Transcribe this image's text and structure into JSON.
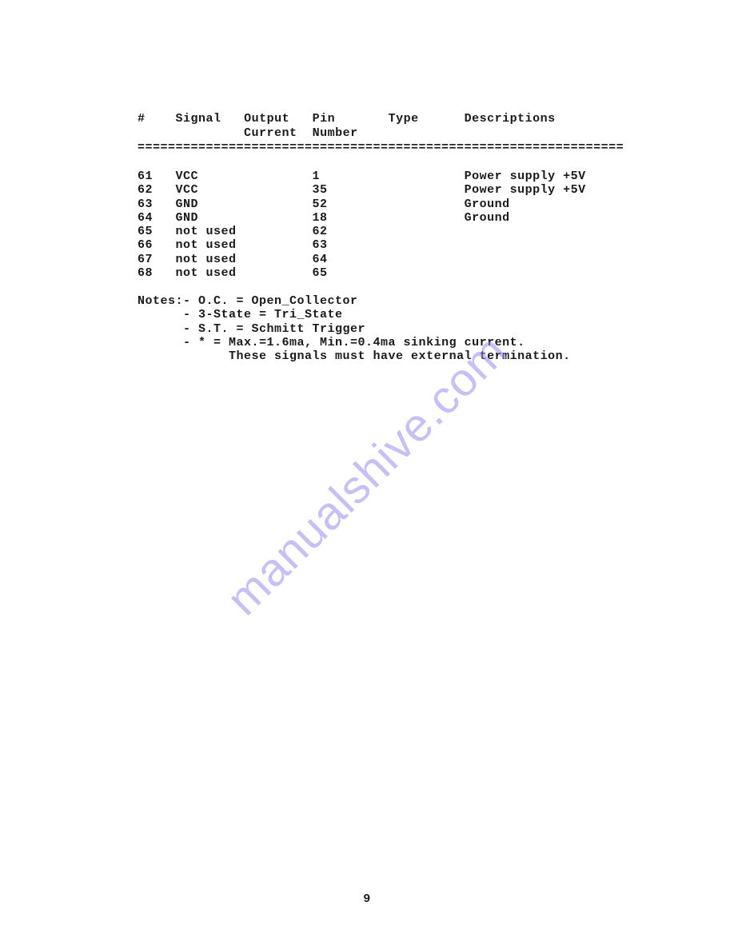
{
  "table": {
    "columns": {
      "num": "#",
      "signal": "Signal",
      "output": "Output",
      "current": "Current",
      "pin": "Pin",
      "number": "Number",
      "type": "Type",
      "descriptions": "Descriptions"
    },
    "separator": "================================================================",
    "rows": [
      {
        "num": "61",
        "signal": "VCC",
        "output": "",
        "pin": "1",
        "type": "",
        "desc": "Power supply +5V"
      },
      {
        "num": "62",
        "signal": "VCC",
        "output": "",
        "pin": "35",
        "type": "",
        "desc": "Power supply +5V"
      },
      {
        "num": "63",
        "signal": "GND",
        "output": "",
        "pin": "52",
        "type": "",
        "desc": "Ground"
      },
      {
        "num": "64",
        "signal": "GND",
        "output": "",
        "pin": "18",
        "type": "",
        "desc": "Ground"
      },
      {
        "num": "65",
        "signal": "not used",
        "output": "",
        "pin": "62",
        "type": "",
        "desc": ""
      },
      {
        "num": "66",
        "signal": "not used",
        "output": "",
        "pin": "63",
        "type": "",
        "desc": ""
      },
      {
        "num": "67",
        "signal": "not used",
        "output": "",
        "pin": "64",
        "type": "",
        "desc": ""
      },
      {
        "num": "68",
        "signal": "not used",
        "output": "",
        "pin": "65",
        "type": "",
        "desc": ""
      }
    ]
  },
  "notes": {
    "prefix": "Notes:",
    "items": [
      "- O.C. = Open_Collector",
      "- 3-State = Tri_State",
      "- S.T. = Schmitt Trigger",
      "- * = Max.=1.6ma, Min.=0.4ma sinking current.",
      "      These signals must have external termination."
    ]
  },
  "watermark": "manualshive.com",
  "page_number": "9",
  "colors": {
    "text": "#1a1a1a",
    "background": "#ffffff",
    "watermark": "#9b8cf0"
  },
  "typography": {
    "font_family": "Courier New",
    "font_size_pt": 11,
    "font_weight": "bold"
  }
}
